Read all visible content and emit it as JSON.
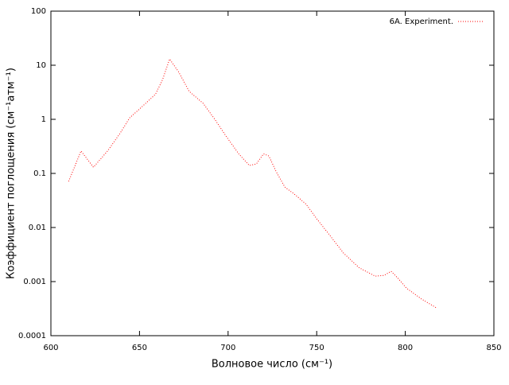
{
  "chart_data": {
    "type": "line",
    "xlabel": "Волновое число (см⁻¹)",
    "ylabel": "Коэффициент поглощения (см⁻¹атм⁻¹)",
    "xlim": [
      600,
      850
    ],
    "xticks": [
      600,
      650,
      700,
      750,
      800,
      850
    ],
    "ylim": [
      0.0001,
      100
    ],
    "yticks": [
      100,
      10,
      1,
      0.1,
      0.01,
      0.001,
      0.0001
    ],
    "yscale": "log",
    "legend": "upper right",
    "x": [
      610,
      617,
      624,
      632,
      639,
      644.5,
      651,
      659,
      663,
      667,
      672,
      678,
      686,
      692.5,
      699,
      706,
      712,
      716,
      720,
      723,
      727,
      732,
      738,
      744,
      750,
      757.5,
      765,
      774,
      783,
      788,
      792,
      796,
      800.6,
      809,
      818
    ],
    "series": [
      {
        "name": "6A. Experiment.",
        "color": "#ff0000",
        "values": [
          0.071,
          0.26,
          0.13,
          0.26,
          0.55,
          1.07,
          1.66,
          2.9,
          5.4,
          13,
          7.6,
          3.3,
          1.96,
          1,
          0.48,
          0.23,
          0.14,
          0.15,
          0.23,
          0.21,
          0.11,
          0.056,
          0.04,
          0.027,
          0.0145,
          0.0071,
          0.0034,
          0.0018,
          0.00126,
          0.0013,
          0.00155,
          0.00114,
          0.00076,
          0.00048,
          0.00032
        ]
      }
    ]
  }
}
